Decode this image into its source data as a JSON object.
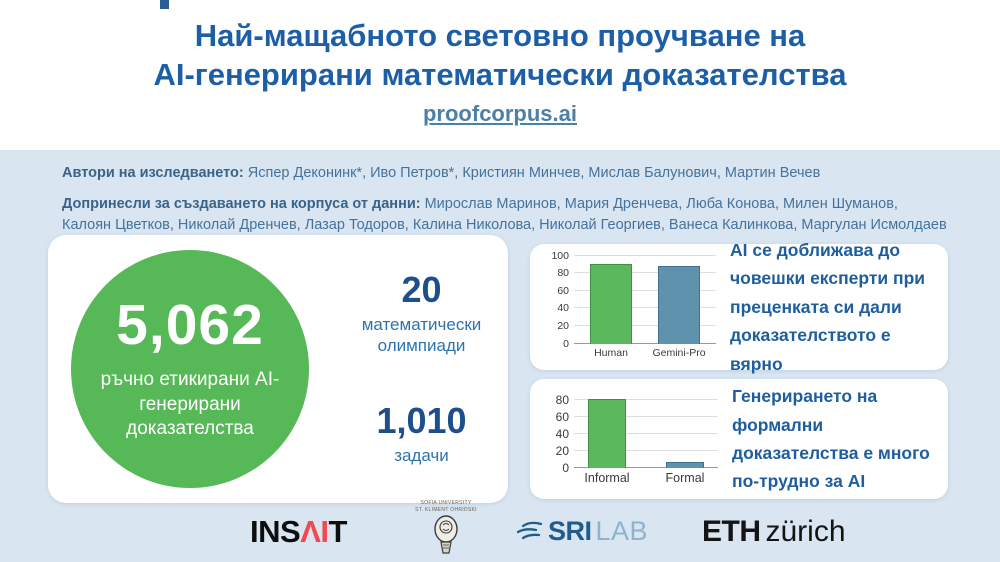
{
  "header": {
    "title_line1": "Най-мащабното световно проучване на",
    "title_line2": "AI-генерирани математически доказателства",
    "link": "proofcorpus.ai"
  },
  "authors": {
    "label1": "Автори на изследването:",
    "names1": " Яспер Деконинк*, Иво Петров*, Кристиян Минчев, Мислав Балунович, Мартин Вечев",
    "label2": "Допринесли за създаването на корпуса от данни:",
    "names2": " Мирослав Маринов, Мария Дренчева, Люба Конова, Милен Шуманов, Калоян Цветков, Николай Дренчев, Лазар Тодоров, Калина Николова, Николай Георгиев, Ванеса Калинкова, Маргулан Исмолдаев"
  },
  "stats_card": {
    "circle_number": "5,062",
    "circle_label": "ръчно етикирани AI-генерирани доказателства",
    "stat1_value": "20",
    "stat1_label": "математически олимпиади",
    "stat2_value": "1,010",
    "stat2_label": "задачи"
  },
  "chart_data": [
    {
      "type": "bar",
      "title": "",
      "categories": [
        "Human",
        "Gemini-Pro"
      ],
      "values": [
        90,
        88
      ],
      "xlabel": "",
      "ylabel": "",
      "ylim": [
        0,
        100
      ],
      "yticks": [
        0,
        20,
        40,
        60,
        80,
        100
      ],
      "render_max": 100,
      "grid": true,
      "legend": false,
      "bar_colors": [
        "#5cb85c",
        "#5e92ad"
      ],
      "bar_borders": [
        "#3f9143",
        "#446f8c"
      ],
      "caption": "AI се доближава до човешки експерти при преценката си дали доказателството е вярно"
    },
    {
      "type": "bar",
      "title": "",
      "categories": [
        "Informal",
        "Formal"
      ],
      "values": [
        82,
        7
      ],
      "xlabel": "",
      "ylabel": "",
      "ylim": [
        0,
        88
      ],
      "yticks": [
        0,
        20,
        40,
        60,
        80
      ],
      "render_max": 88,
      "grid": true,
      "legend": false,
      "bar_colors": [
        "#5cb85c",
        "#5e92ad"
      ],
      "bar_borders": [
        "#3f9143",
        "#446f8c"
      ],
      "caption": "Генерирането на формални доказателства е много по-трудно за AI"
    }
  ],
  "logos": {
    "insait_ins": "INS",
    "insait_ai": "ΛI",
    "insait_t": "T",
    "sofia_line1": "SOFIA UNIVERSITY",
    "sofia_line2": "ST. KLIMENT OHRIDSKI",
    "srilab_sri": "SRI",
    "srilab_lab": "LAB",
    "eth": "ETH",
    "eth_city": "zürich"
  },
  "colors": {
    "title_blue": "#1d5fa7",
    "link_blue": "#4d80a6",
    "panel_background": "#d9e6f2",
    "circle_green": "#57b857",
    "bar_green": "#5cb85c",
    "bar_blue": "#5e92ad",
    "stat_navy": "#1e4e8c",
    "insait_red": "#f2484e"
  }
}
